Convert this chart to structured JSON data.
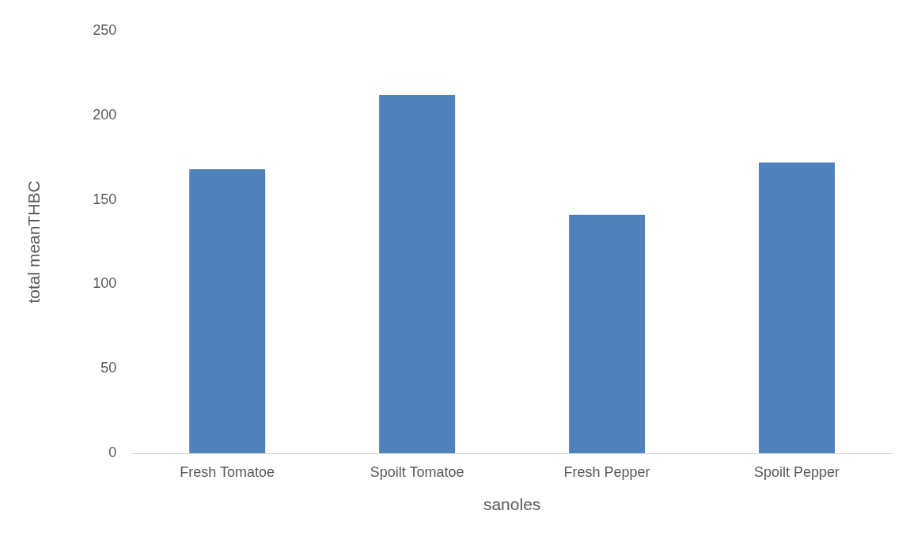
{
  "chart_data": {
    "type": "bar",
    "xlabel": "sanoles",
    "ylabel": "total meanTHBC",
    "categories": [
      "Fresh Tomatoe",
      "Spoilt Tomatoe",
      "Fresh Pepper",
      "Spoilt Pepper"
    ],
    "values": [
      168,
      212,
      141,
      172
    ],
    "color": "#4f81bd",
    "ylim": [
      0,
      250
    ],
    "yticks": [
      0,
      50,
      100,
      150,
      200,
      250
    ],
    "grid": false,
    "legend": false
  }
}
